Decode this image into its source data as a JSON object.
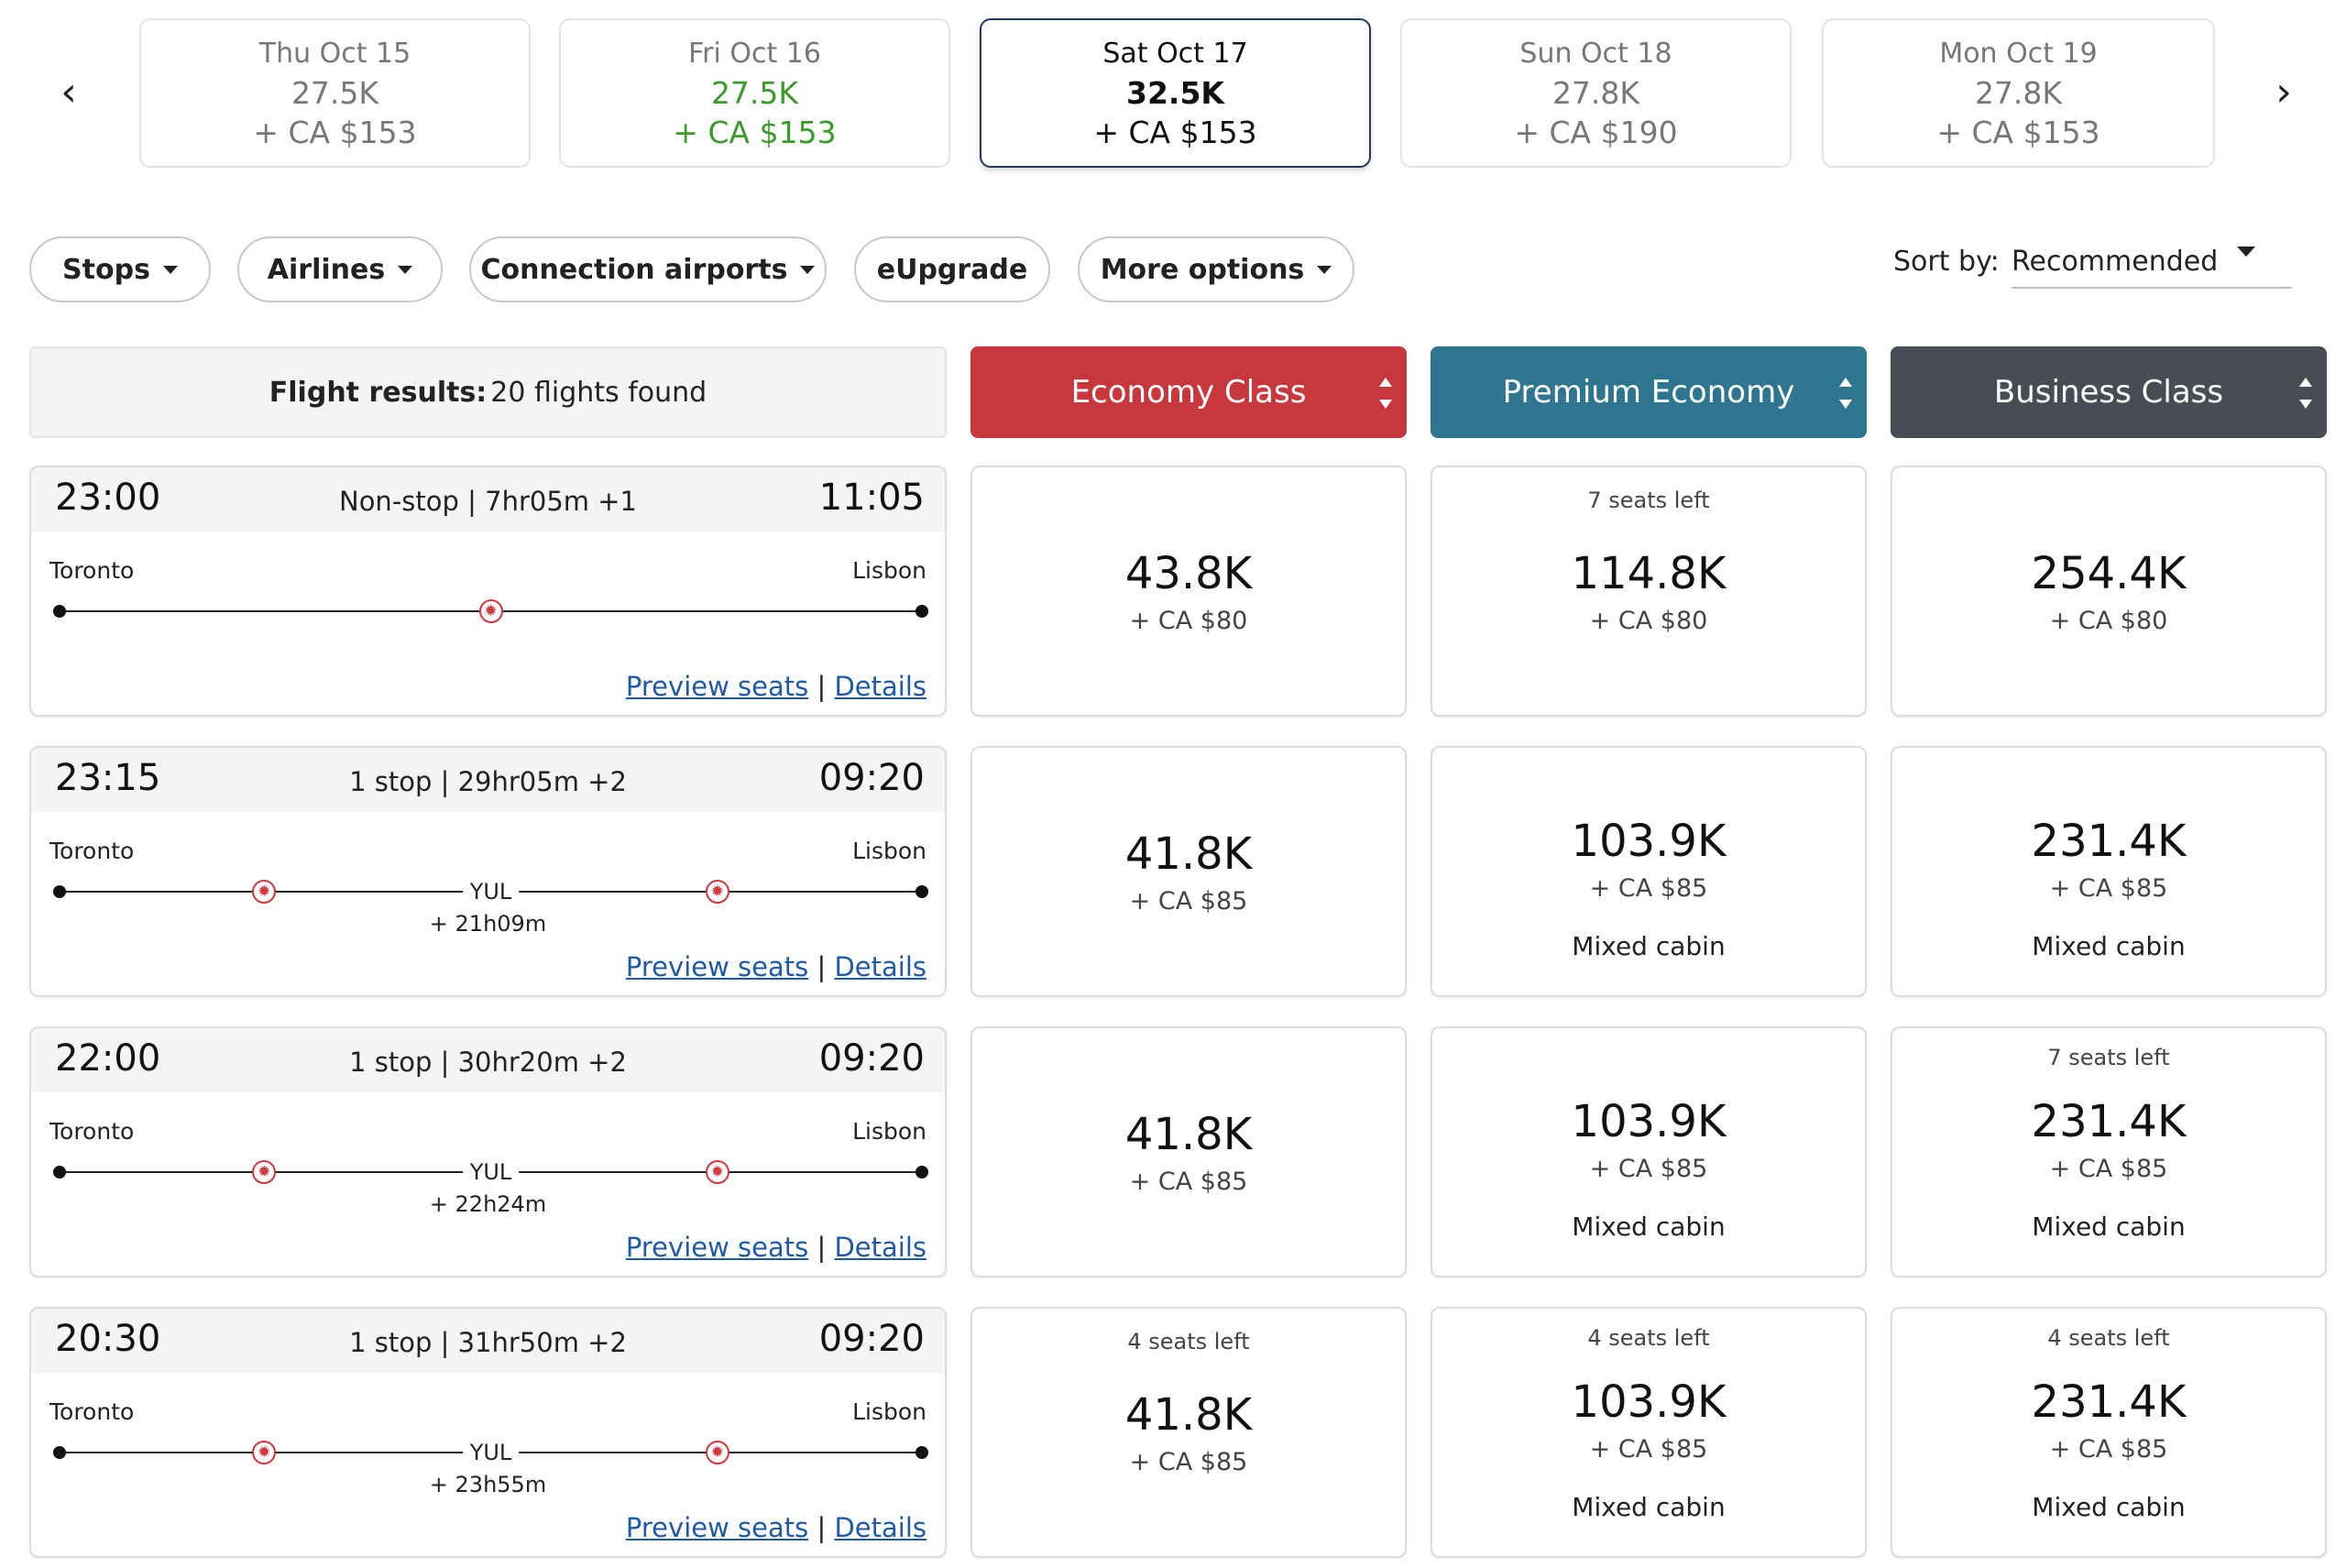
{
  "date_strip": {
    "prev_arrow": "‹",
    "next_arrow": "›",
    "dates": [
      {
        "label": "Thu Oct 15",
        "points": "27.5K",
        "tax": "+ CA $153"
      },
      {
        "label": "Fri Oct 16",
        "points": "27.5K",
        "tax": "+ CA $153"
      },
      {
        "label": "Sat Oct 17",
        "points": "32.5K",
        "tax": "+ CA $153"
      },
      {
        "label": "Sun Oct 18",
        "points": "27.8K",
        "tax": "+ CA $190"
      },
      {
        "label": "Mon Oct 19",
        "points": "27.8K",
        "tax": "+ CA $153"
      }
    ]
  },
  "filters": {
    "stops": "Stops",
    "airlines": "Airlines",
    "connection_airports": "Connection airports",
    "eupgrade": "eUpgrade",
    "more_options": "More options"
  },
  "sort": {
    "label": "Sort by:",
    "value": "Recommended"
  },
  "results": {
    "label": "Flight results:",
    "count": "20 flights found"
  },
  "cabins": {
    "economy": "Economy Class",
    "premium": "Premium Economy",
    "business": "Business Class"
  },
  "links": {
    "preview": "Preview seats",
    "separator": "|",
    "details": "Details"
  },
  "flights": [
    {
      "departure": "23:00",
      "arrival": "11:05",
      "summary": "Non-stop | 7hr05m +1",
      "origin": "Toronto",
      "destination": "Lisbon",
      "stop_code": "",
      "layover": "",
      "fares": [
        {
          "seats": "",
          "points": "43.8K",
          "tax": "+ CA $80",
          "note": ""
        },
        {
          "seats": "7 seats left",
          "points": "114.8K",
          "tax": "+ CA $80",
          "note": ""
        },
        {
          "seats": "",
          "points": "254.4K",
          "tax": "+ CA $80",
          "note": ""
        }
      ]
    },
    {
      "departure": "23:15",
      "arrival": "09:20",
      "summary": "1 stop | 29hr05m +2",
      "origin": "Toronto",
      "destination": "Lisbon",
      "stop_code": "YUL",
      "layover": "+ 21h09m",
      "fares": [
        {
          "seats": "",
          "points": "41.8K",
          "tax": "+ CA $85",
          "note": ""
        },
        {
          "seats": "",
          "points": "103.9K",
          "tax": "+ CA $85",
          "note": "Mixed cabin"
        },
        {
          "seats": "",
          "points": "231.4K",
          "tax": "+ CA $85",
          "note": "Mixed cabin"
        }
      ]
    },
    {
      "departure": "22:00",
      "arrival": "09:20",
      "summary": "1 stop | 30hr20m +2",
      "origin": "Toronto",
      "destination": "Lisbon",
      "stop_code": "YUL",
      "layover": "+ 22h24m",
      "fares": [
        {
          "seats": "",
          "points": "41.8K",
          "tax": "+ CA $85",
          "note": ""
        },
        {
          "seats": "",
          "points": "103.9K",
          "tax": "+ CA $85",
          "note": "Mixed cabin"
        },
        {
          "seats": "7 seats left",
          "points": "231.4K",
          "tax": "+ CA $85",
          "note": "Mixed cabin"
        }
      ]
    },
    {
      "departure": "20:30",
      "arrival": "09:20",
      "summary": "1 stop | 31hr50m +2",
      "origin": "Toronto",
      "destination": "Lisbon",
      "stop_code": "YUL",
      "layover": "+ 23h55m",
      "fares": [
        {
          "seats": "4 seats left",
          "points": "41.8K",
          "tax": "+ CA $85",
          "note": ""
        },
        {
          "seats": "4 seats left",
          "points": "103.9K",
          "tax": "+ CA $85",
          "note": "Mixed cabin"
        },
        {
          "seats": "4 seats left",
          "points": "231.4K",
          "tax": "+ CA $85",
          "note": "Mixed cabin"
        }
      ]
    }
  ]
}
